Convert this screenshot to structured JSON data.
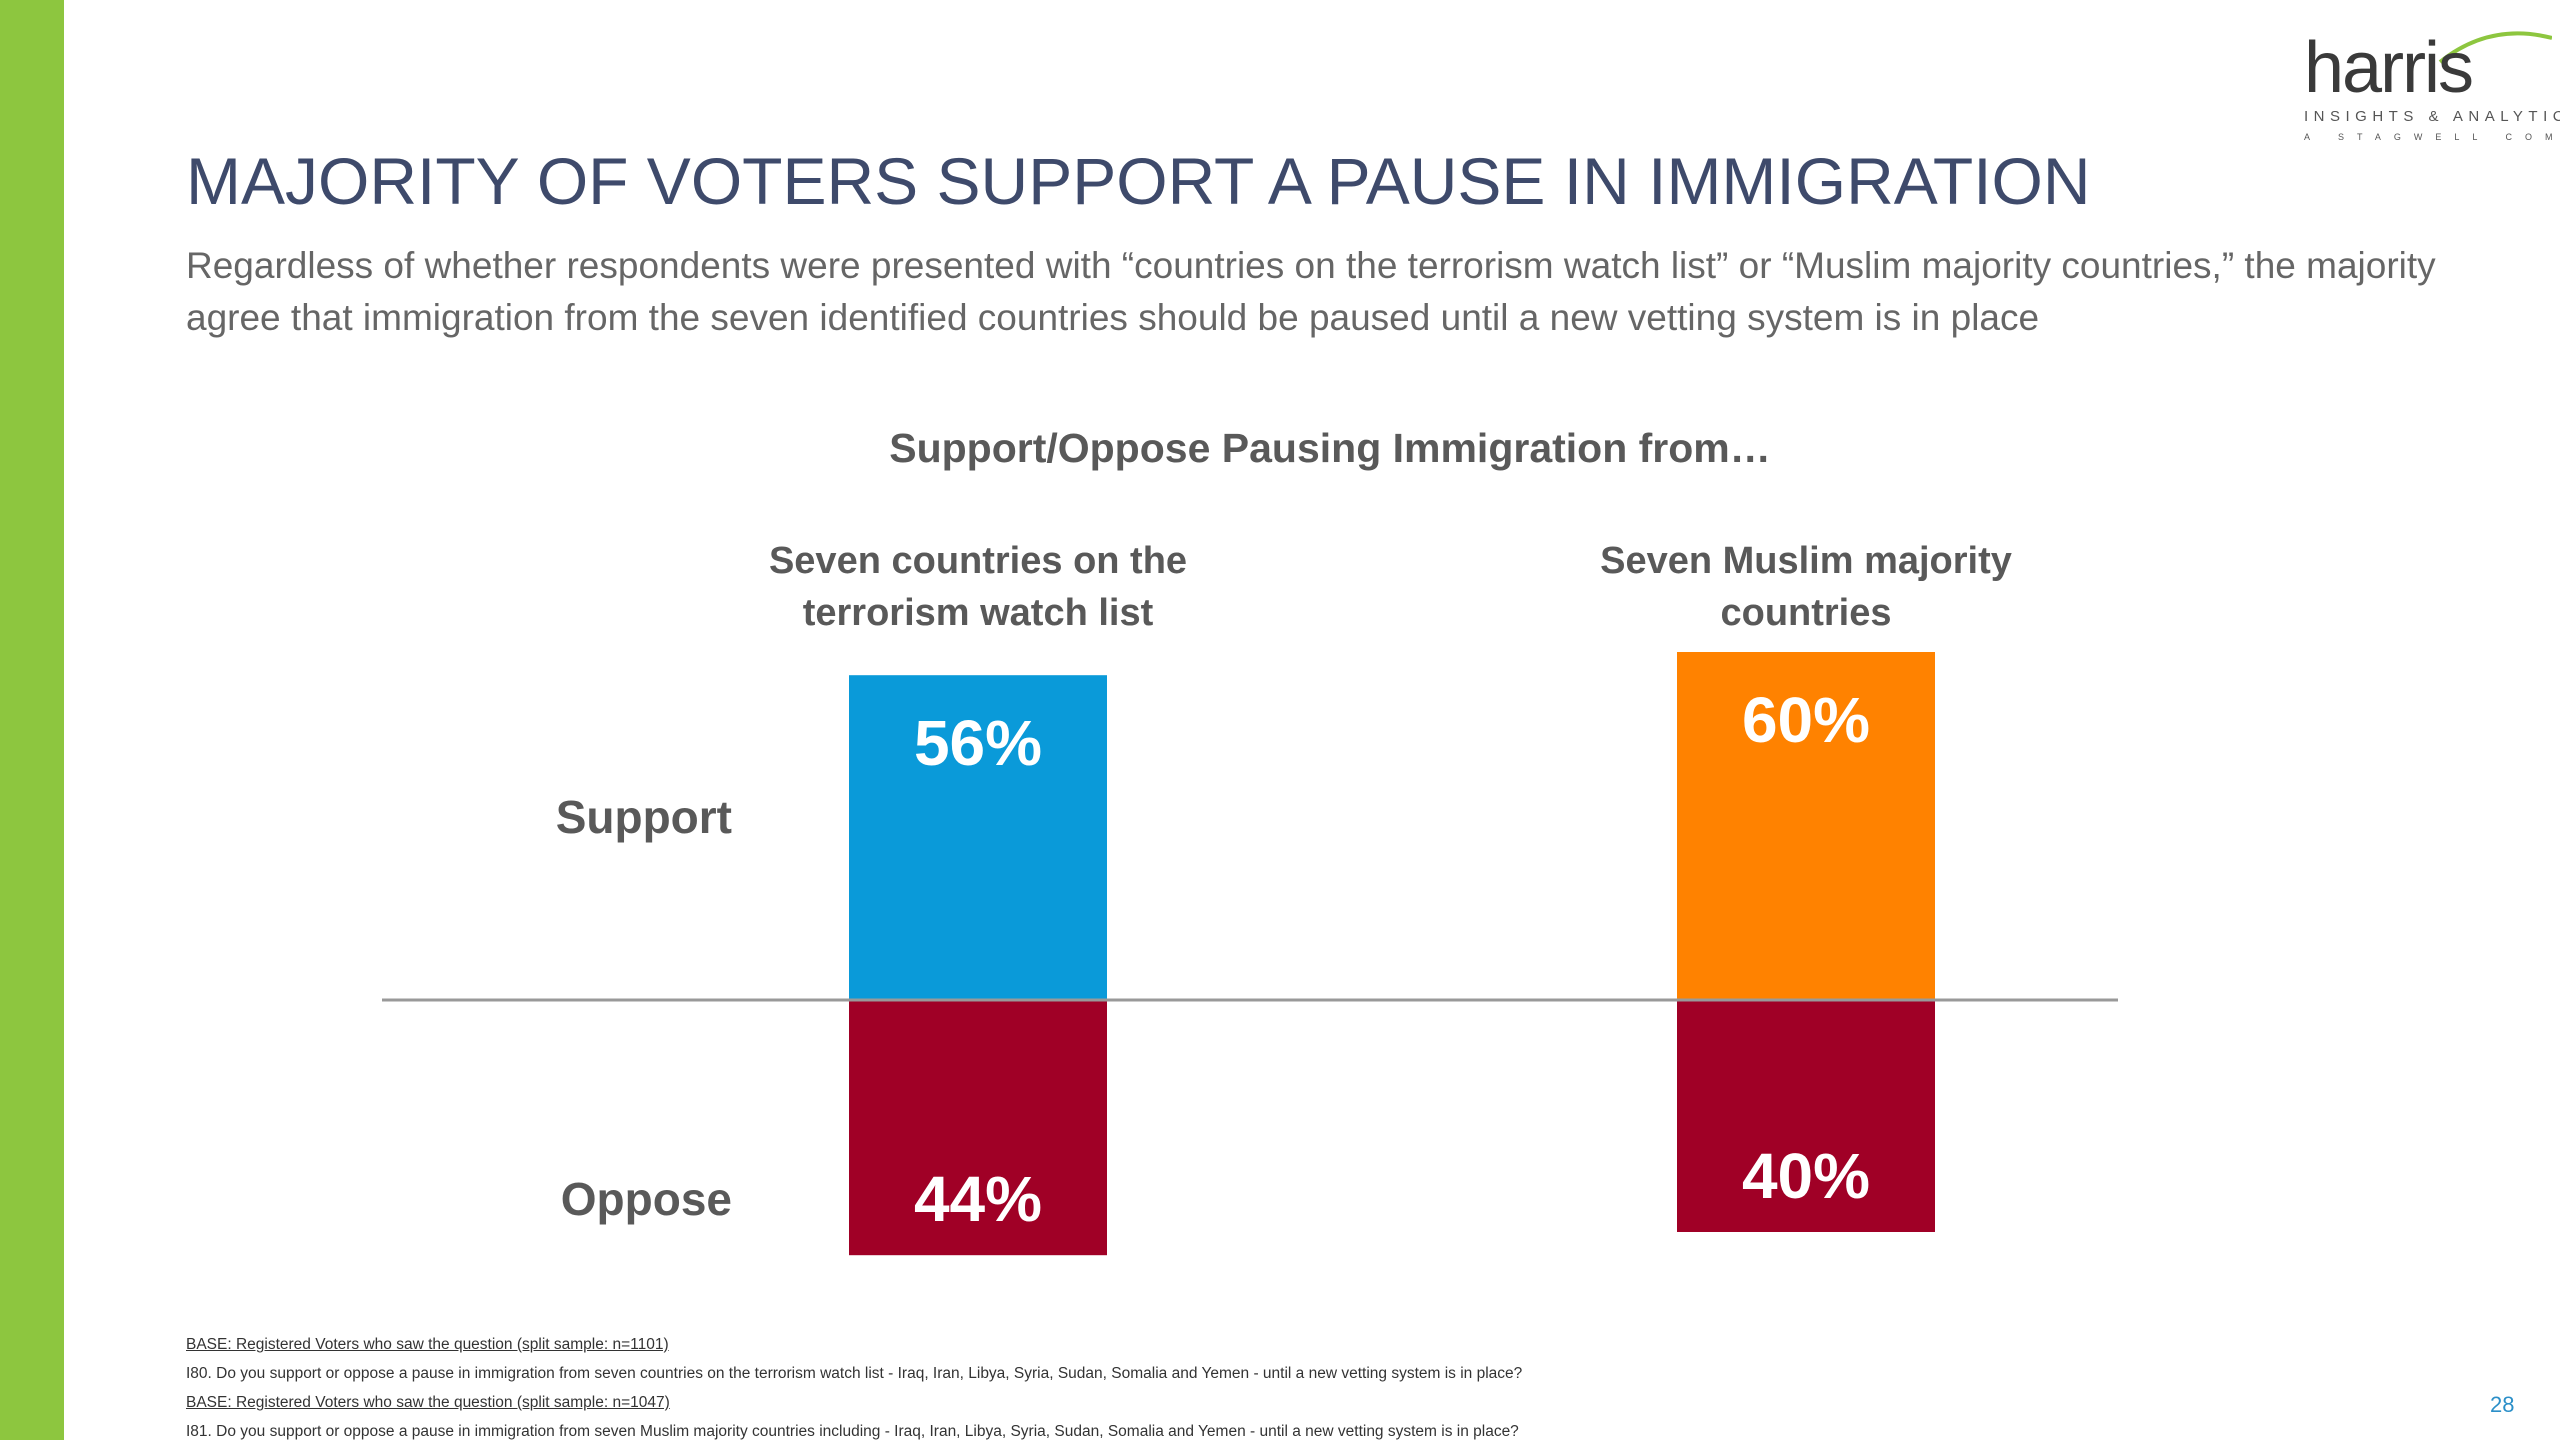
{
  "slide": {
    "title": "MAJORITY OF VOTERS SUPPORT A PAUSE IN IMMIGRATION",
    "subtitle": "Regardless of whether respondents were presented with “countries on the terrorism watch list” or “Muslim majority countries,” the majority agree that immigration from the seven identified countries should be paused until a new vetting system is in place",
    "page_number": "28"
  },
  "logo": {
    "word": "harris",
    "tagline": "INSIGHTS & ANALYTICS",
    "sub_tagline": "A STAGWELL COMPANY",
    "accent_color": "#8dc63f"
  },
  "chart_data": {
    "type": "bar",
    "title": "Support/Oppose Pausing Immigration from…",
    "categories": [
      "Seven countries on the terrorism watch list",
      "Seven Muslim majority countries"
    ],
    "category_lines": [
      [
        "Seven countries on the",
        "terrorism watch list"
      ],
      [
        "Seven Muslim majority",
        "countries"
      ]
    ],
    "row_labels": [
      "Support",
      "Oppose"
    ],
    "series": [
      {
        "name": "Support",
        "values": [
          56,
          60
        ],
        "value_labels": [
          "56%",
          "60%"
        ],
        "colors": [
          "#0a9ad9",
          "#ff8200"
        ]
      },
      {
        "name": "Oppose",
        "values": [
          44,
          40
        ],
        "value_labels": [
          "44%",
          "40%"
        ],
        "colors": [
          "#a00026",
          "#a00026"
        ]
      }
    ],
    "unit": "%",
    "stacked_diverging": true,
    "baseline_color": "#999999"
  },
  "footnotes": [
    {
      "text": "BASE: Registered Voters who saw the question (split sample: n=1101)",
      "underline": true
    },
    {
      "text": "I80. Do you support or oppose a pause in immigration from seven countries on the terrorism watch list - Iraq, Iran, Libya, Syria, Sudan, Somalia and Yemen - until a new vetting system is in place?",
      "underline": false
    },
    {
      "text": "BASE: Registered Voters who saw the question (split sample: n=1047)",
      "underline": true
    },
    {
      "text": "I81. Do you support or oppose a pause in immigration from seven Muslim majority countries including - Iraq, Iran, Libya, Syria, Sudan, Somalia and Yemen - until a new vetting system is in place?",
      "underline": false
    }
  ]
}
